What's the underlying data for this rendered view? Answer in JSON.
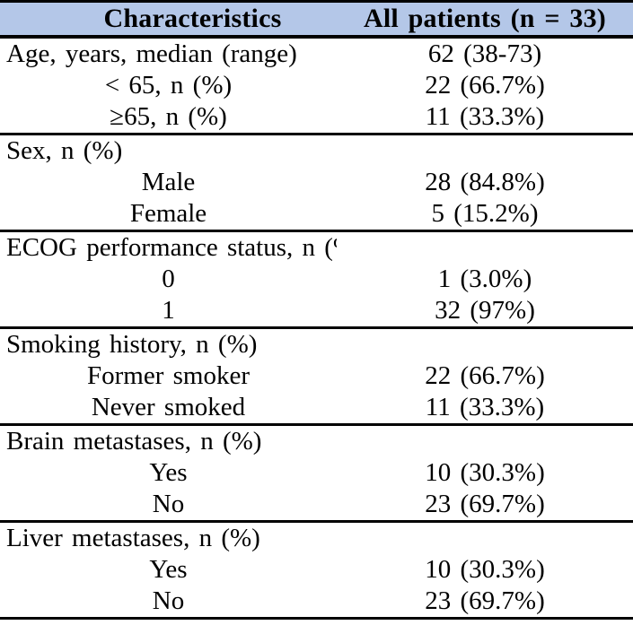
{
  "colors": {
    "header_bg": "#b4c7e8",
    "border": "#000000",
    "text": "#000000",
    "row_bg": "#ffffff"
  },
  "header": {
    "characteristics": "Characteristics",
    "all_patients": "All patients (n = 33)"
  },
  "sections": [
    {
      "name": "age",
      "rows": [
        {
          "label": "Age, years, median (range)",
          "value": "62 (38-73)",
          "indent": false
        },
        {
          "label": "< 65, n (%)",
          "value": "22 (66.7%)",
          "indent": true
        },
        {
          "label": "≥65, n (%)",
          "value": "11 (33.3%)",
          "indent": true
        }
      ]
    },
    {
      "name": "sex",
      "rows": [
        {
          "label": "Sex, n (%)",
          "value": "",
          "indent": false
        },
        {
          "label": "Male",
          "value": "28 (84.8%)",
          "indent": true
        },
        {
          "label": "Female",
          "value": "5 (15.2%)",
          "indent": true
        }
      ]
    },
    {
      "name": "ecog-performance-status",
      "rows": [
        {
          "label": "ECOG performance status, n (%)",
          "value": "",
          "indent": false
        },
        {
          "label": "0",
          "value": "1 (3.0%)",
          "indent": true
        },
        {
          "label": "1",
          "value": "32 (97%)",
          "indent": true
        }
      ]
    },
    {
      "name": "smoking-history",
      "rows": [
        {
          "label": "Smoking history, n (%)",
          "value": "",
          "indent": false
        },
        {
          "label": "Former smoker",
          "value": "22 (66.7%)",
          "indent": true
        },
        {
          "label": "Never smoked",
          "value": "11 (33.3%)",
          "indent": true
        }
      ]
    },
    {
      "name": "brain-metastases",
      "rows": [
        {
          "label": "Brain metastases, n (%)",
          "value": "",
          "indent": false
        },
        {
          "label": "Yes",
          "value": "10 (30.3%)",
          "indent": true
        },
        {
          "label": "No",
          "value": "23 (69.7%)",
          "indent": true
        }
      ]
    },
    {
      "name": "liver-metastases",
      "rows": [
        {
          "label": "Liver metastases, n (%)",
          "value": "",
          "indent": false
        },
        {
          "label": "Yes",
          "value": "10 (30.3%)",
          "indent": true
        },
        {
          "label": "No",
          "value": "23 (69.7%)",
          "indent": true
        }
      ]
    }
  ]
}
